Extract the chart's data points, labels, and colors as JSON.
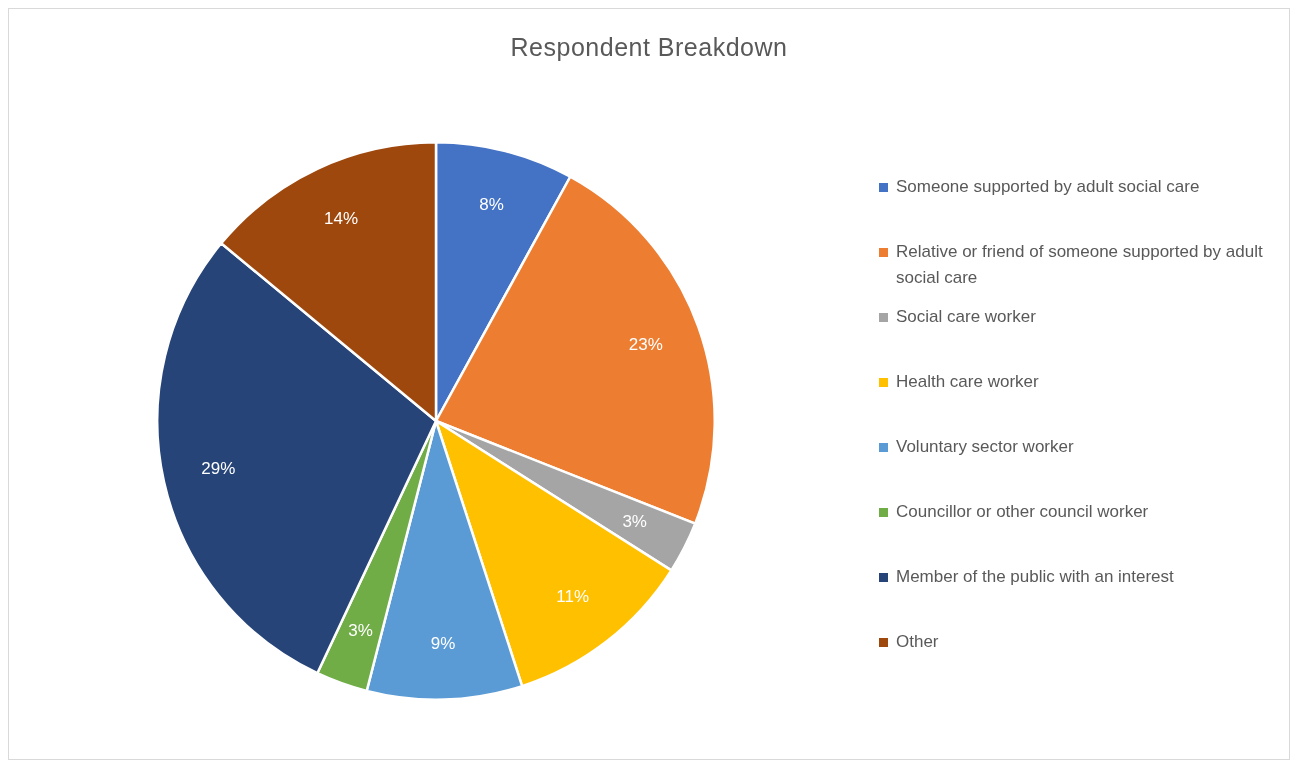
{
  "chart_data": {
    "type": "pie",
    "title": "Respondent Breakdown",
    "categories": [
      "Someone supported by adult social care",
      "Relative or friend of someone supported by adult social care",
      "Social care worker",
      "Health care worker",
      "Voluntary sector worker",
      "Councillor or other council worker",
      "Member of the public with an interest",
      "Other"
    ],
    "values": [
      8,
      23,
      3,
      11,
      9,
      3,
      29,
      14
    ],
    "value_labels": [
      "8%",
      "23%",
      "3%",
      "11%",
      "9%",
      "3%",
      "29%",
      "14%"
    ],
    "colors": [
      "#4472c4",
      "#ed7d31",
      "#a5a5a5",
      "#ffc000",
      "#5b9bd5",
      "#70ad47",
      "#264478",
      "#9e480e"
    ],
    "legend": "right"
  }
}
